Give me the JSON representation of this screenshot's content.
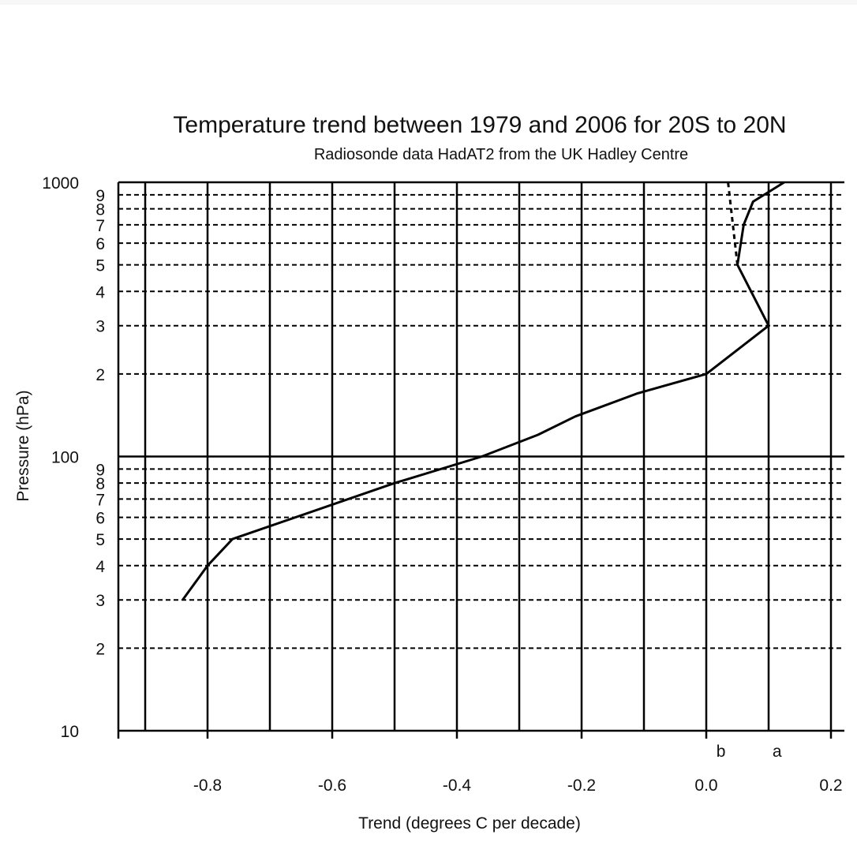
{
  "chart_data": {
    "type": "line",
    "title": "Temperature trend between 1979 and 2006 for 20S to 20N",
    "subtitle": "Radiosonde data HadAT2 from the UK Hadley Centre",
    "xlabel": "Trend (degrees C per decade)",
    "ylabel": "Pressure (hPa)",
    "xlim": [
      -0.95,
      0.2
    ],
    "ylim": [
      1000,
      10
    ],
    "y_scale": "log",
    "y_decade_labels": [
      "10",
      "100",
      "1000"
    ],
    "y_minor_labels": [
      "2",
      "3",
      "4",
      "5",
      "6",
      "7",
      "8",
      "9"
    ],
    "x_ticks": [
      -0.8,
      -0.6,
      -0.4,
      -0.2,
      0.0,
      0.2
    ],
    "x_tick_labels": [
      "-0.8",
      "-0.6",
      "-0.4",
      "-0.2",
      "0.0",
      "0.2"
    ],
    "grid": true,
    "series": [
      {
        "name": "a",
        "line_style": "solid",
        "points": [
          {
            "x": -0.84,
            "y": 30
          },
          {
            "x": -0.8,
            "y": 40
          },
          {
            "x": -0.76,
            "y": 50
          },
          {
            "x": -0.5,
            "y": 80
          },
          {
            "x": -0.36,
            "y": 100
          },
          {
            "x": -0.27,
            "y": 120
          },
          {
            "x": -0.21,
            "y": 140
          },
          {
            "x": -0.11,
            "y": 170
          },
          {
            "x": 0.0,
            "y": 200
          },
          {
            "x": 0.1,
            "y": 300
          },
          {
            "x": 0.05,
            "y": 500
          },
          {
            "x": 0.06,
            "y": 700
          },
          {
            "x": 0.075,
            "y": 850
          },
          {
            "x": 0.125,
            "y": 1000
          }
        ]
      },
      {
        "name": "b",
        "line_style": "dashed",
        "points": [
          {
            "x": 0.05,
            "y": 500
          },
          {
            "x": 0.035,
            "y": 1000
          }
        ]
      }
    ],
    "annotations": [
      "b",
      "a"
    ]
  }
}
